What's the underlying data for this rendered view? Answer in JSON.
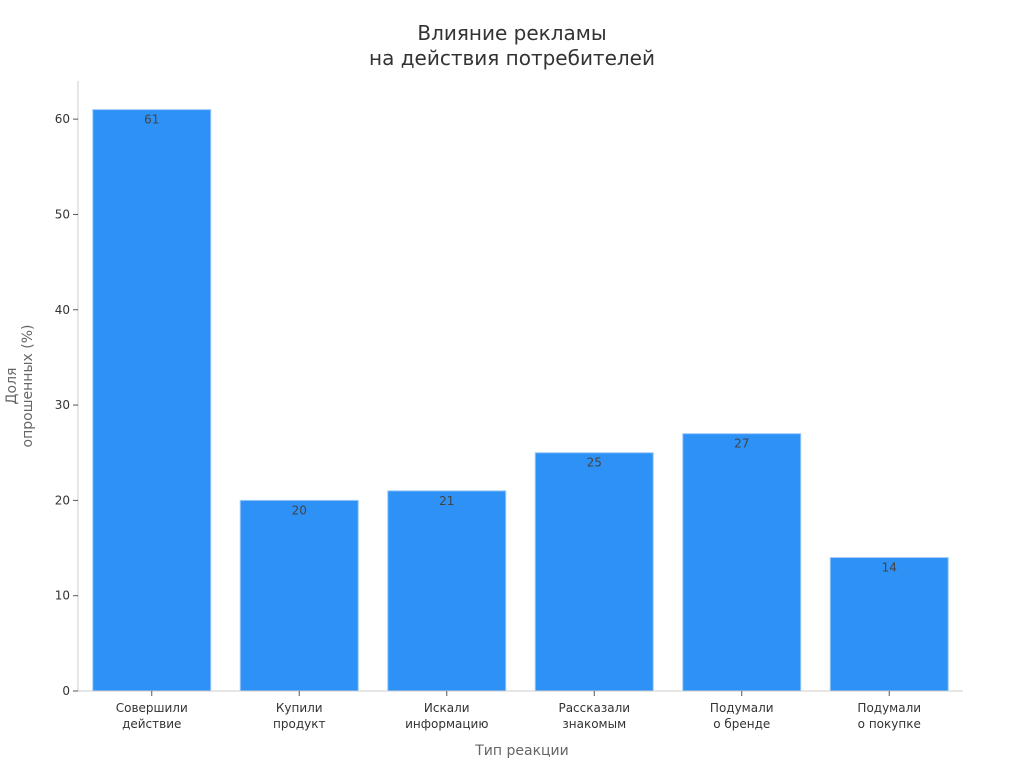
{
  "chart_data": {
    "type": "bar",
    "title": "Влияние рекламы\nна действия потребителей",
    "xlabel": "Тип реакции",
    "ylabel": "Доля\nопрошенных (%)",
    "categories": [
      "Совершили\nдействие",
      "Купили\nпродукт",
      "Искали\nинформацию",
      "Рассказали\nзнакомым",
      "Подумали\nо бренде",
      "Подумали\nо покупке"
    ],
    "values": [
      61,
      20,
      21,
      25,
      27,
      14
    ],
    "ylim": [
      0,
      64
    ],
    "yticks": [
      0,
      10,
      20,
      30,
      40,
      50,
      60
    ],
    "grid": false,
    "legend": "none",
    "colors": {
      "bar": "#2d91f6",
      "bar_edge": "#9ecbf9",
      "axis": "#cccccc"
    }
  }
}
